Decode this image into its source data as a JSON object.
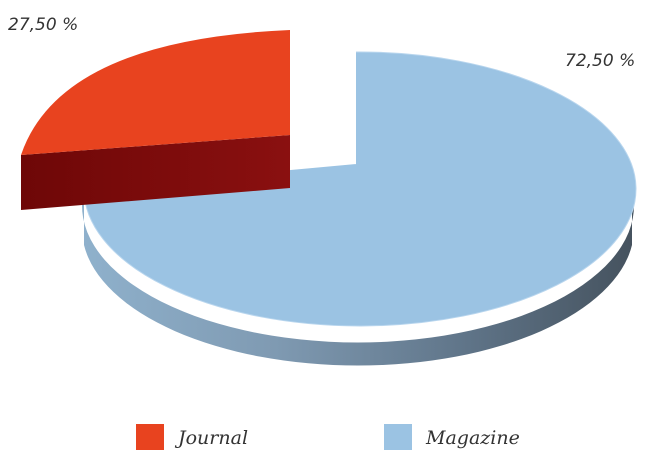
{
  "chart_data": {
    "type": "pie",
    "style": "3d-exploded",
    "slices": [
      {
        "name": "Journal",
        "value": 27.5,
        "label": "27,50 %",
        "color": "#e8431f",
        "side_color": "#7a0b0b"
      },
      {
        "name": "Magazine",
        "value": 72.5,
        "label": "72,50 %",
        "color": "#9bc3e3",
        "side_color": "#4d5f70"
      }
    ],
    "legend_position": "bottom"
  }
}
